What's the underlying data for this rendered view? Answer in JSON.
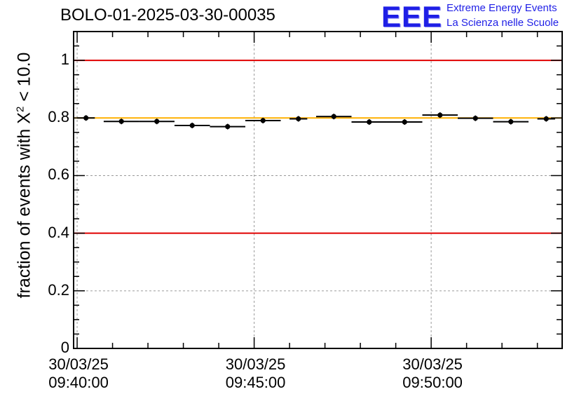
{
  "chart_data": {
    "type": "scatter",
    "title": "BOLO-01-2025-03-30-00035",
    "ylabel_prefix": "fraction of events with ",
    "ylabel_symbol": "X",
    "ylabel_sup": "2",
    "ylabel_suffix": " < 10.0",
    "xlabel": "",
    "ylim": [
      0,
      1.1
    ],
    "yticks": [
      "0",
      "0.2",
      "0.4",
      "0.6",
      "0.8",
      "1"
    ],
    "xlim_min": [
      -0.1,
      13.7
    ],
    "xticks": [
      {
        "date": "30/03/25",
        "time": "09:40:00",
        "t": 0
      },
      {
        "date": "30/03/25",
        "time": "09:45:00",
        "t": 5
      },
      {
        "date": "30/03/25",
        "time": "09:50:00",
        "t": 10
      }
    ],
    "grid": true,
    "reference_lines": [
      {
        "y": 1.0,
        "color": "#e00000"
      },
      {
        "y": 0.8,
        "color": "#ffb000"
      },
      {
        "y": 0.4,
        "color": "#e00000"
      }
    ],
    "series": [
      {
        "x_min": [
          0.25,
          1.25,
          2.25,
          3.25,
          4.25,
          5.25,
          6.25,
          7.25,
          8.25,
          9.25,
          10.25,
          11.25,
          12.25,
          13.25
        ],
        "x_halfwidth_min": [
          0.25,
          0.5,
          0.5,
          0.5,
          0.5,
          0.5,
          0.25,
          0.5,
          0.5,
          0.5,
          0.5,
          0.5,
          0.5,
          0.25
        ],
        "y": [
          0.8,
          0.788,
          0.788,
          0.774,
          0.77,
          0.791,
          0.797,
          0.805,
          0.786,
          0.786,
          0.81,
          0.799,
          0.787,
          0.797
        ],
        "color": "#000000"
      }
    ]
  },
  "logo": {
    "mark": "EEE",
    "line1": "Extreme Energy Events",
    "line2": "La Scienza nelle Scuole",
    "color": "#1f1fe6"
  }
}
